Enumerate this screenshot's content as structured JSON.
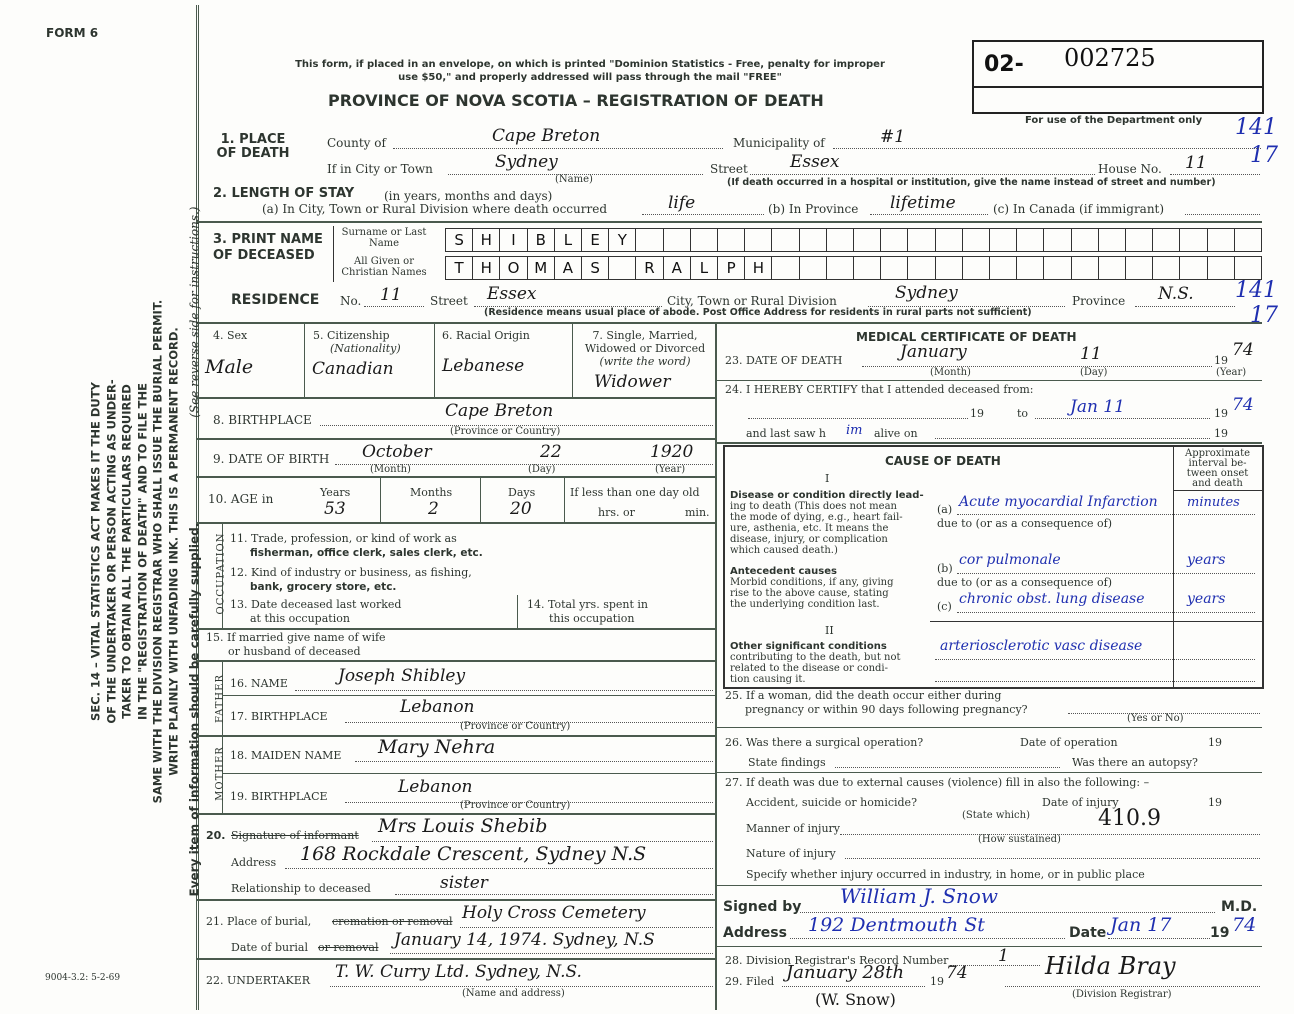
{
  "form_label": "FORM 6",
  "notice": [
    "This form, if placed in an envelope, on which is printed \"Dominion Statistics - Free, penalty for improper",
    "use $50,\" and properly addressed will pass through the mail \"FREE\""
  ],
  "title": "PROVINCE OF NOVA SCOTIA – REGISTRATION OF DEATH",
  "registration": {
    "prefix": "02-",
    "number": "002725",
    "dept_note": "For use of the Department only",
    "margin_codes": [
      "141",
      "17",
      "141",
      "17"
    ]
  },
  "sidebar": {
    "lines": [
      "SEC. 14 – VITAL STATISTICS ACT MAKES IT THE DUTY",
      "OF THE UNDERTAKER OR PERSON ACTING AS UNDER-",
      "TAKER TO OBTAIN ALL THE PARTICULARS REQUIRED",
      "IN THE \"REGISTRATION OF DEATH\" AND TO FILE THE",
      "SAME WITH THE DIVISION REGISTRAR WHO SHALL ISSUE THE BURIAL PERMIT.",
      "WRITE PLAINLY WITH UNFADING INK. THIS IS A PERMANENT RECORD."
    ],
    "footer": "Every item of information should be carefully supplied.",
    "instructions": "(See reverse side for instructions.)",
    "print_code": "9004-3.2: 5-2-69"
  },
  "place": {
    "label": "1. PLACE OF DEATH",
    "county_label": "County of",
    "county": "Cape Breton",
    "municipality_label": "Municipality of",
    "municipality": "#1",
    "city_label": "If in City or Town",
    "city": "Sydney",
    "name_hint": "(Name)",
    "street_label": "Street",
    "street": "Essex",
    "house_label": "House No.",
    "house": "11",
    "hospital_note": "(If death occurred in a hospital or institution, give the name instead of street and number)"
  },
  "stay": {
    "label": "2. LENGTH OF STAY",
    "units": "(in years, months and days)",
    "a_label": "(a) In City, Town or Rural Division where death occurred",
    "a": "life",
    "b_label": "(b) In Province",
    "b": "lifetime",
    "c_label": "(c) In Canada (if immigrant)"
  },
  "name": {
    "label": "3. PRINT NAME OF DECEASED",
    "surname_label": "Surname or Last Name",
    "surname": [
      "S",
      "H",
      "I",
      "B",
      "L",
      "E",
      "Y"
    ],
    "given_label": "All Given or Christian Names",
    "given": [
      "T",
      "H",
      "O",
      "M",
      "A",
      "S",
      "",
      "R",
      "A",
      "L",
      "P",
      "H"
    ]
  },
  "residence": {
    "label": "RESIDENCE",
    "no_label": "No.",
    "no": "11",
    "street_label": "Street",
    "street": "Essex",
    "city_label": "City, Town or Rural Division",
    "city": "Sydney",
    "province_label": "Province",
    "province": "N.S.",
    "note": "(Residence means usual place of abode. Post Office Address for residents in rural parts not sufficient)"
  },
  "personal": {
    "sex_label": "4. Sex",
    "sex": "Male",
    "citizenship_label": "5. Citizenship",
    "citizenship_sub": "(Nationality)",
    "citizenship": "Canadian",
    "racial_label": "6. Racial Origin",
    "racial": "Lebanese",
    "marital_label": [
      "7. Single, Married,",
      "Widowed or Divorced",
      "(write the word)"
    ],
    "marital": "Widower"
  },
  "birthplace": {
    "label": "8. BIRTHPLACE",
    "value": "Cape Breton",
    "hint": "(Province or Country)"
  },
  "dob": {
    "label": "9. DATE OF BIRTH",
    "month": "October",
    "day": "22",
    "year": "1920",
    "month_hint": "(Month)",
    "day_hint": "(Day)",
    "year_hint": "(Year)"
  },
  "age": {
    "label": "10. AGE in",
    "years_label": "Years",
    "years": "53",
    "months_label": "Months",
    "months": "2",
    "days_label": "Days",
    "days": "20",
    "less_label": "If less than one day old",
    "hrs_label": "hrs. or",
    "min_label": "min."
  },
  "occupation": {
    "side": "OCCUPATION",
    "q11": [
      "11. Trade, profession, or kind of work as",
      "fisherman, office clerk, sales clerk, etc."
    ],
    "q12": [
      "12. Kind of industry or business, as fishing,",
      "bank, grocery store, etc."
    ],
    "q13": [
      "13. Date deceased last worked",
      "at this occupation"
    ],
    "q14": [
      "14. Total yrs. spent in",
      "this occupation"
    ]
  },
  "spouse": {
    "label": [
      "15. If married give name of wife",
      "or husband of deceased"
    ]
  },
  "father": {
    "side": "FATHER",
    "name_label": "16. NAME",
    "name": "Joseph Shibley",
    "birthplace_label": "17. BIRTHPLACE",
    "birthplace": "Lebanon",
    "hint": "(Province or Country)"
  },
  "mother": {
    "side": "MOTHER",
    "maiden_label": "18. MAIDEN NAME",
    "maiden": "Mary Nehra",
    "birthplace_label": "19. BIRTHPLACE",
    "birthplace": "Lebanon",
    "hint": "(Province or Country)"
  },
  "informant": {
    "num": "20.",
    "label_struck": "Signature of informant",
    "name": "Mrs Louis Shebib",
    "address_label": "Address",
    "address": "168 Rockdale Crescent, Sydney N.S",
    "relationship_label": "Relationship to deceased",
    "relationship": "sister"
  },
  "burial": {
    "place_label": "21. Place of burial,",
    "place_struck": "cremation or removal",
    "place": "Holy Cross Cemetery",
    "date_label": "Date of burial",
    "date_struck": "or removal",
    "date": "January 14, 1974. Sydney, N.S"
  },
  "undertaker": {
    "label": "22. UNDERTAKER",
    "value": "T. W. Curry Ltd. Sydney, N.S.",
    "hint": "(Name and address)"
  },
  "medical": {
    "heading": "MEDICAL CERTIFICATE OF DEATH",
    "q23": {
      "label": "23. DATE OF DEATH",
      "month": "January",
      "day": "11",
      "year_prefix": "19",
      "year": "74",
      "month_hint": "(Month)",
      "day_hint": "(Day)",
      "year_hint": "(Year)"
    },
    "q24": {
      "label": "24. I HEREBY CERTIFY that I attended deceased from:",
      "from_year": "19",
      "to_label": "to",
      "to": "Jan 11",
      "to_year_prefix": "19",
      "to_year": "74",
      "last_saw_label": "and last saw h",
      "last_saw": "im",
      "alive_label": "alive on",
      "alive_year": "19"
    },
    "cause": {
      "heading": "CAUSE OF DEATH",
      "interval_label": [
        "Approximate",
        "interval be-",
        "tween onset",
        "and death"
      ],
      "part1": "I",
      "direct_title": "Disease or condition directly lead-",
      "direct_body": [
        "ing to death (This does not mean",
        "the mode of dying, e.g., heart fail-",
        "ure, asthenia, etc. It means the",
        "disease, injury, or complication",
        "which caused death.)"
      ],
      "antecedent_title": "Antecedent causes",
      "antecedent_body": [
        "Morbid conditions, if any, giving",
        "rise to the above cause, stating",
        "the underlying condition last."
      ],
      "part2": "II",
      "other_title": "Other significant conditions",
      "other_body": [
        "contributing to the death, but not",
        "related to the disease or condi-",
        "tion causing it."
      ],
      "a_label": "(a)",
      "a": "Acute myocardial Infarction",
      "a_interval": "minutes",
      "due_to": "due to (or as a consequence of)",
      "b_label": "(b)",
      "b": "cor pulmonale",
      "b_interval": "years",
      "c_label": "(c)",
      "c": "chronic obst. lung disease",
      "c_interval": "years",
      "other": "arteriosclerotic vasc disease"
    },
    "q25": {
      "label": [
        "25. If a woman, did the death occur either during",
        "pregnancy or within 90 days following pregnancy?"
      ],
      "hint": "(Yes or No)"
    },
    "q26": {
      "label": "26. Was there a surgical operation?",
      "date_label": "Date of operation",
      "year": "19",
      "findings_label": "State findings",
      "autopsy_label": "Was there an autopsy?"
    },
    "q27": {
      "label": "27. If death was due to external causes (violence) fill in also the following: –",
      "accident_label": "Accident, suicide or homicide?",
      "state_hint": "(State which)",
      "injury_date_label": "Date of injury",
      "year": "19",
      "manner_label": "Manner of injury",
      "manner_code": "410.9",
      "how_hint": "(How sustained)",
      "nature_label": "Nature of injury",
      "specify_label": "Specify whether injury occurred in industry, in home, or in public place"
    },
    "signed": {
      "label": "Signed by",
      "name": "William J. Snow",
      "md": "M.D.",
      "address_label": "Address",
      "address": "192 Dentmouth St",
      "date_label": "Date",
      "date": "Jan 17",
      "year_prefix": "19",
      "year": "74"
    },
    "q28": {
      "label": "28. Division Registrar's Record Number",
      "value": "1"
    },
    "q29": {
      "label": "29. Filed",
      "date": "January 28th",
      "year_prefix": "19",
      "year": "74",
      "registrar": "Hilda Bray",
      "registrar_hint": "(Division Registrar)",
      "note": "(W. Snow)"
    }
  }
}
